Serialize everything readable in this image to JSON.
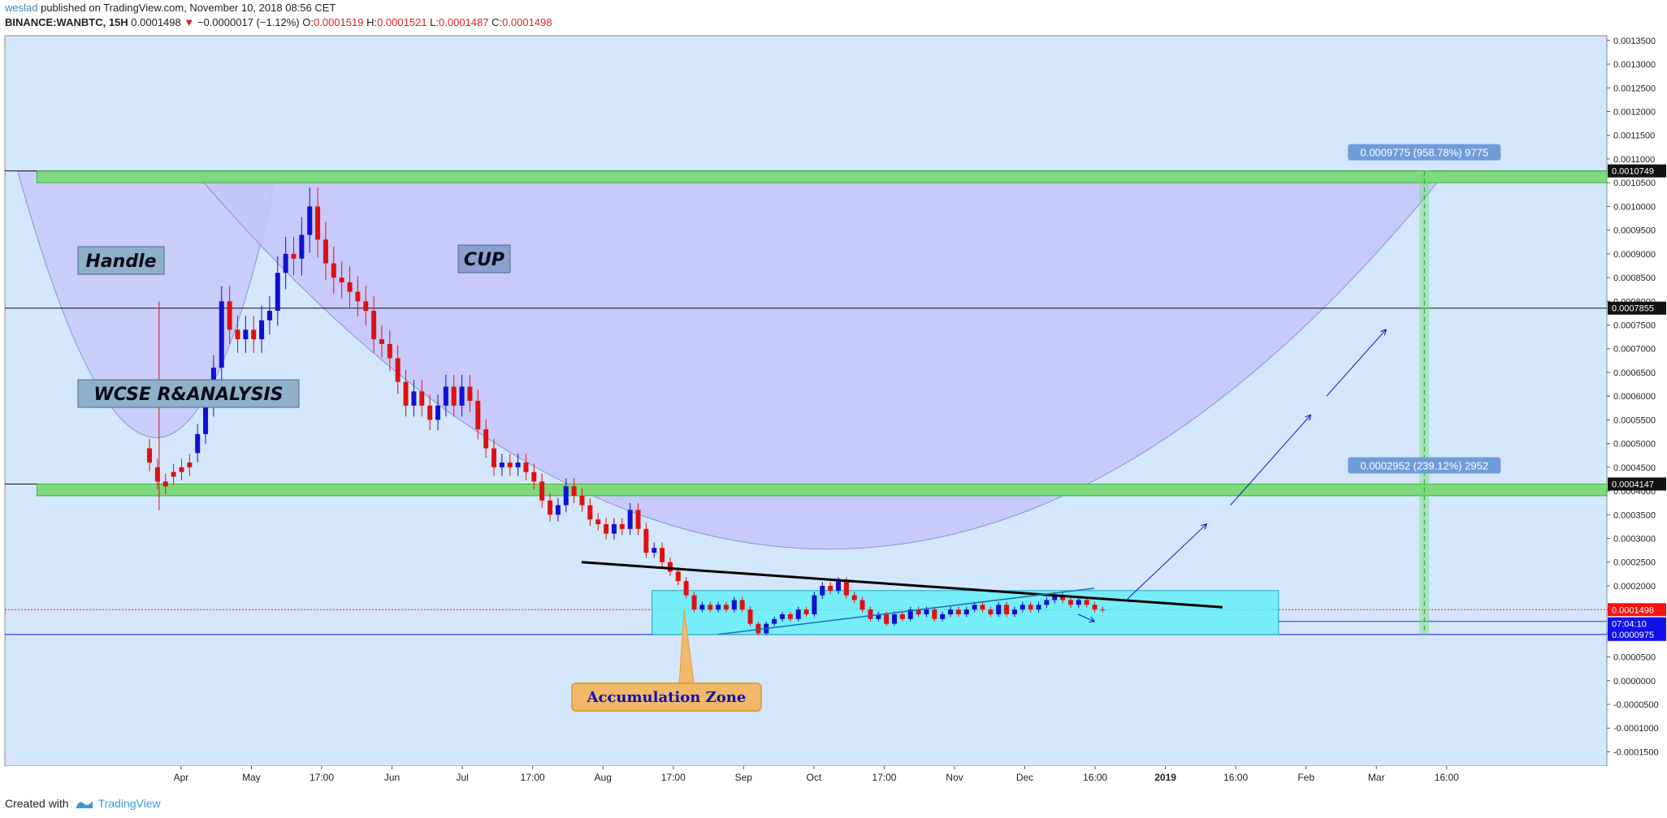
{
  "header": {
    "author": "weslad",
    "published": "published on TradingView.com, November 10, 2018 08:56 CET",
    "symbol": "BINANCE:WANBTC, 15H",
    "price": "0.0001498",
    "change_arrow": "▼",
    "change": "−0.0000017 (−1.12%)",
    "o_label": "O:",
    "o": "0.0001519",
    "h_label": "H:",
    "h": "0.0001521",
    "l_label": "L:",
    "l": "0.0001487",
    "c_label": "C:",
    "c": "0.0001498"
  },
  "footer": {
    "created_with": "Created with",
    "brand": "TradingView"
  },
  "colors": {
    "background": "#d4e6fb",
    "cup_fill": "#c4c4fa",
    "band_green": "#7fd97f",
    "zone_cyan": "#5cf0fa",
    "candle_up": "#1010d0",
    "candle_down": "#e01010",
    "label_bg": "#6e9cd8",
    "price_red": "#ff1010",
    "price_blue": "#1010e8"
  },
  "chart_data": {
    "type": "candlestick",
    "x_axis": {
      "ticks": [
        "Apr",
        "May",
        "17:00",
        "Jun",
        "Jul",
        "17:00",
        "Aug",
        "17:00",
        "Sep",
        "Oct",
        "17:00",
        "Nov",
        "Dec",
        "16:00",
        "2019",
        "16:00",
        "Feb",
        "Mar",
        "16:00"
      ]
    },
    "y_axis": {
      "range": [
        -0.00018,
        0.00136
      ],
      "ticks": [
        "0.0013500",
        "0.0013000",
        "0.0012500",
        "0.0012000",
        "0.0011500",
        "0.0011000",
        "0.0010500",
        "0.0010000",
        "0.0009500",
        "0.0009000",
        "0.0008500",
        "0.0008000",
        "0.0007500",
        "0.0007000",
        "0.0006500",
        "0.0006000",
        "0.0005500",
        "0.0005000",
        "0.0004500",
        "0.0004000",
        "0.0003500",
        "0.0003000",
        "0.0002500",
        "0.0002000",
        "0.0001500",
        "0.0001000",
        "0.0000500",
        "0.0000000",
        "-0.0000500",
        "-0.0001000",
        "-0.0001500"
      ]
    },
    "price_tags": [
      {
        "value": 0.0010749,
        "label": "0.0010749",
        "style": "dark"
      },
      {
        "value": 0.0007855,
        "label": "0.0007855",
        "style": "dark"
      },
      {
        "value": 0.0004147,
        "label": "0.0004147",
        "style": "dark"
      },
      {
        "value": 0.0001498,
        "label": "0.0001498",
        "style": "red"
      },
      {
        "value": 0.00012,
        "label": "07:04:10",
        "style": "blue"
      },
      {
        "value": 9.75e-05,
        "label": "0.0000975",
        "style": "blue"
      }
    ],
    "annotations": {
      "handle": "Handle",
      "cup": "CUP",
      "wcse": "WCSE R&ANALYSIS",
      "accumulation": "Accumulation Zone",
      "measure_top": "0.0009775 (958.78%) 9775",
      "measure_mid": "0.0002952 (239.12%) 2952"
    },
    "series": [
      {
        "name": "price",
        "points": [
          [
            0.07,
            0.00049,
            0.00046
          ],
          [
            0.075,
            0.00045,
            0.00042
          ],
          [
            0.08,
            0.00042,
            0.00041
          ],
          [
            0.085,
            0.00044,
            0.00043
          ],
          [
            0.09,
            0.00045,
            0.00044
          ],
          [
            0.095,
            0.00046,
            0.00045
          ],
          [
            0.1,
            0.00048,
            0.00052
          ],
          [
            0.105,
            0.00052,
            0.00058
          ],
          [
            0.11,
            0.00058,
            0.00066
          ],
          [
            0.115,
            0.00066,
            0.0008
          ],
          [
            0.12,
            0.0008,
            0.00074
          ],
          [
            0.125,
            0.00074,
            0.00072
          ],
          [
            0.13,
            0.00072,
            0.00074
          ],
          [
            0.135,
            0.00074,
            0.00072
          ],
          [
            0.14,
            0.00072,
            0.00076
          ],
          [
            0.145,
            0.00076,
            0.00078
          ],
          [
            0.15,
            0.00078,
            0.00086
          ],
          [
            0.155,
            0.00086,
            0.0009
          ],
          [
            0.16,
            0.0009,
            0.00089
          ],
          [
            0.165,
            0.00089,
            0.00094
          ],
          [
            0.17,
            0.00094,
            0.001
          ],
          [
            0.175,
            0.001,
            0.00093
          ],
          [
            0.18,
            0.00093,
            0.00088
          ],
          [
            0.185,
            0.00088,
            0.00085
          ],
          [
            0.19,
            0.00085,
            0.00084
          ],
          [
            0.195,
            0.00084,
            0.00082
          ],
          [
            0.2,
            0.00082,
            0.0008
          ],
          [
            0.205,
            0.0008,
            0.00078
          ],
          [
            0.21,
            0.00078,
            0.00072
          ],
          [
            0.215,
            0.00072,
            0.00071
          ],
          [
            0.22,
            0.00071,
            0.00068
          ],
          [
            0.225,
            0.00068,
            0.00063
          ],
          [
            0.23,
            0.00063,
            0.00058
          ],
          [
            0.235,
            0.00058,
            0.00061
          ],
          [
            0.24,
            0.00061,
            0.00058
          ],
          [
            0.245,
            0.00058,
            0.00055
          ],
          [
            0.25,
            0.00055,
            0.00058
          ],
          [
            0.255,
            0.00058,
            0.00062
          ],
          [
            0.26,
            0.00062,
            0.00058
          ],
          [
            0.265,
            0.00058,
            0.00062
          ],
          [
            0.27,
            0.00062,
            0.00059
          ],
          [
            0.275,
            0.00059,
            0.00053
          ],
          [
            0.28,
            0.00053,
            0.00049
          ],
          [
            0.285,
            0.00049,
            0.00045
          ],
          [
            0.29,
            0.00045,
            0.00046
          ],
          [
            0.295,
            0.00046,
            0.00045
          ],
          [
            0.3,
            0.00045,
            0.00046
          ],
          [
            0.305,
            0.00046,
            0.00044
          ],
          [
            0.31,
            0.00044,
            0.00042
          ],
          [
            0.315,
            0.00042,
            0.00038
          ],
          [
            0.32,
            0.00038,
            0.00035
          ],
          [
            0.325,
            0.00035,
            0.00037
          ],
          [
            0.33,
            0.00037,
            0.00041
          ],
          [
            0.335,
            0.00041,
            0.00039
          ],
          [
            0.34,
            0.00039,
            0.00037
          ],
          [
            0.345,
            0.00037,
            0.00034
          ],
          [
            0.35,
            0.00034,
            0.00033
          ],
          [
            0.355,
            0.00033,
            0.00031
          ],
          [
            0.36,
            0.00031,
            0.00033
          ],
          [
            0.365,
            0.00033,
            0.00032
          ],
          [
            0.37,
            0.00032,
            0.00036
          ],
          [
            0.375,
            0.00036,
            0.00032
          ],
          [
            0.38,
            0.00032,
            0.00027
          ],
          [
            0.385,
            0.00027,
            0.00028
          ],
          [
            0.39,
            0.00028,
            0.00025
          ],
          [
            0.395,
            0.00025,
            0.00023
          ],
          [
            0.4,
            0.00023,
            0.00021
          ],
          [
            0.405,
            0.00021,
            0.00018
          ],
          [
            0.41,
            0.00018,
            0.00015
          ],
          [
            0.415,
            0.00015,
            0.00016
          ],
          [
            0.42,
            0.00016,
            0.00015
          ],
          [
            0.425,
            0.00015,
            0.00016
          ],
          [
            0.43,
            0.00016,
            0.00015
          ],
          [
            0.435,
            0.00015,
            0.00017
          ],
          [
            0.44,
            0.00017,
            0.00015
          ],
          [
            0.445,
            0.00015,
            0.00012
          ],
          [
            0.45,
            0.00012,
            0.0001
          ],
          [
            0.455,
            0.0001,
            0.00012
          ],
          [
            0.46,
            0.00012,
            0.00013
          ],
          [
            0.465,
            0.00013,
            0.00014
          ],
          [
            0.47,
            0.00014,
            0.00013
          ],
          [
            0.475,
            0.00013,
            0.00015
          ],
          [
            0.48,
            0.00015,
            0.00014
          ],
          [
            0.485,
            0.00014,
            0.00018
          ],
          [
            0.49,
            0.00018,
            0.0002
          ],
          [
            0.495,
            0.0002,
            0.00019
          ],
          [
            0.5,
            0.00019,
            0.00021
          ],
          [
            0.505,
            0.00021,
            0.00018
          ],
          [
            0.51,
            0.00018,
            0.00017
          ],
          [
            0.515,
            0.00017,
            0.00015
          ],
          [
            0.52,
            0.00015,
            0.00013
          ],
          [
            0.525,
            0.00013,
            0.00014
          ],
          [
            0.53,
            0.00014,
            0.00012
          ],
          [
            0.535,
            0.00012,
            0.00014
          ],
          [
            0.54,
            0.00014,
            0.00013
          ],
          [
            0.545,
            0.00013,
            0.00015
          ],
          [
            0.55,
            0.00015,
            0.00014
          ],
          [
            0.555,
            0.00014,
            0.00015
          ],
          [
            0.56,
            0.00015,
            0.00013
          ],
          [
            0.565,
            0.00013,
            0.00014
          ],
          [
            0.57,
            0.00014,
            0.00015
          ],
          [
            0.575,
            0.00015,
            0.00014
          ],
          [
            0.58,
            0.00014,
            0.00015
          ],
          [
            0.585,
            0.00015,
            0.00016
          ],
          [
            0.59,
            0.00016,
            0.00015
          ],
          [
            0.595,
            0.00015,
            0.00014
          ],
          [
            0.6,
            0.00014,
            0.00016
          ],
          [
            0.605,
            0.00016,
            0.00014
          ],
          [
            0.61,
            0.00014,
            0.00015
          ],
          [
            0.615,
            0.00015,
            0.00016
          ],
          [
            0.62,
            0.00016,
            0.00015
          ],
          [
            0.625,
            0.00015,
            0.00016
          ],
          [
            0.63,
            0.00016,
            0.00017
          ],
          [
            0.635,
            0.00017,
            0.00018
          ],
          [
            0.64,
            0.00018,
            0.00017
          ],
          [
            0.645,
            0.00017,
            0.00016
          ],
          [
            0.65,
            0.00016,
            0.00017
          ],
          [
            0.655,
            0.00017,
            0.00016
          ],
          [
            0.66,
            0.00016,
            0.00015
          ],
          [
            0.665,
            0.00015,
            0.0001498
          ]
        ]
      }
    ]
  }
}
